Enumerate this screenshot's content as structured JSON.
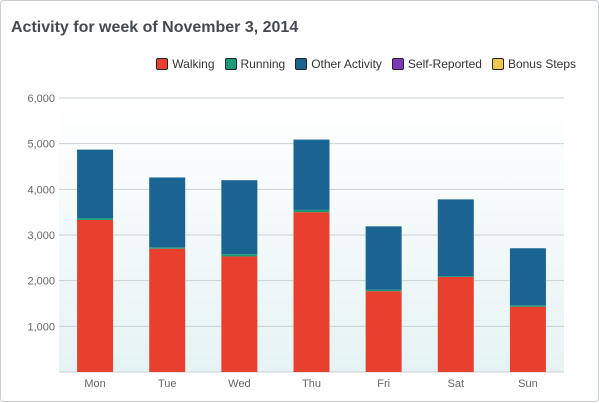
{
  "header": {
    "title": "Activity for week of November 3, 2014"
  },
  "chart_data": {
    "type": "bar",
    "stacked": true,
    "categories": [
      "Mon",
      "Tue",
      "Wed",
      "Thu",
      "Fri",
      "Sat",
      "Sun"
    ],
    "series": [
      {
        "name": "Walking",
        "color": "#e8402f",
        "values": [
          3330,
          2700,
          2530,
          3500,
          1770,
          2080,
          1430
        ]
      },
      {
        "name": "Running",
        "color": "#1a9a76",
        "values": [
          40,
          30,
          50,
          50,
          30,
          20,
          30
        ]
      },
      {
        "name": "Other Activity",
        "color": "#1a6494",
        "values": [
          1500,
          1530,
          1620,
          1540,
          1390,
          1680,
          1250
        ]
      },
      {
        "name": "Self-Reported",
        "color": "#7b3bb8",
        "values": [
          0,
          0,
          0,
          0,
          0,
          0,
          0
        ]
      },
      {
        "name": "Bonus Steps",
        "color": "#f2c84b",
        "values": [
          0,
          0,
          0,
          0,
          0,
          0,
          0
        ]
      }
    ],
    "ylim": [
      0,
      6000
    ],
    "yticks": [
      "6,000",
      "5,000",
      "4,000",
      "3,000",
      "2,000",
      "1,000"
    ],
    "ytick_values": [
      6000,
      5000,
      4000,
      3000,
      2000,
      1000
    ],
    "grid": true,
    "legend_position": "top-right"
  }
}
